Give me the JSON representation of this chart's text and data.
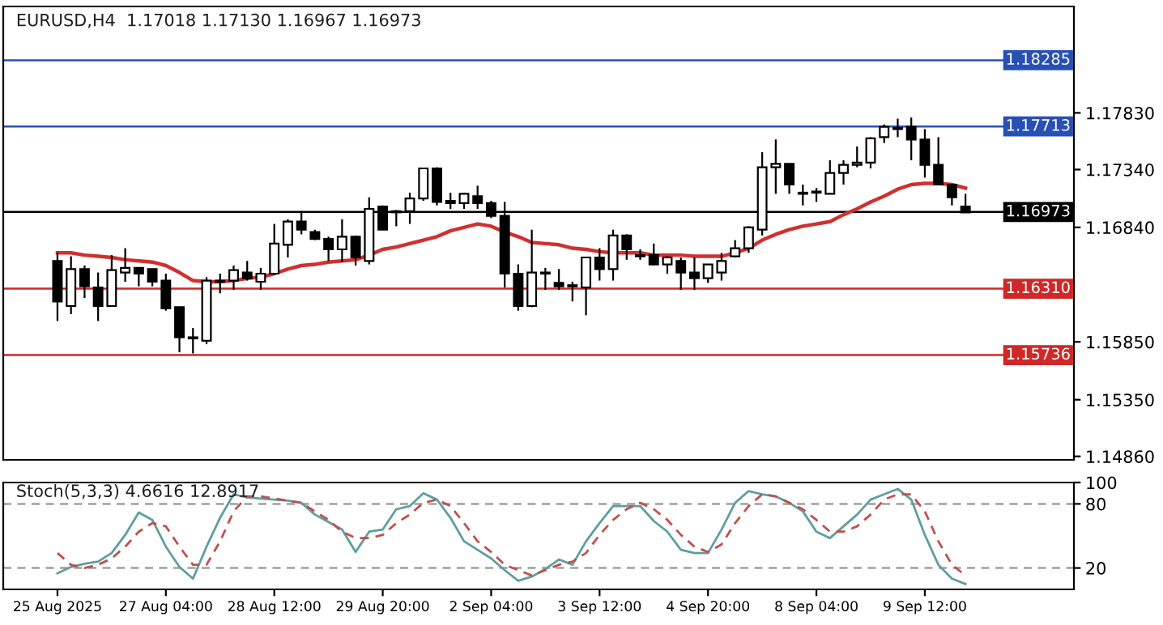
{
  "chart_data": [
    {
      "type": "candlestick",
      "title": "EURUSD,H4  1.17018 1.17130 1.16967 1.16973",
      "categories": [
        null,
        null,
        null,
        null,
        null,
        null,
        null,
        null,
        null,
        null,
        null,
        null,
        null,
        null,
        null,
        null,
        null,
        null,
        null,
        null,
        null,
        null,
        null,
        null,
        null,
        null,
        null,
        null,
        null,
        null,
        null,
        null,
        null,
        null,
        null,
        null,
        null,
        null,
        null,
        null,
        null,
        null,
        null,
        null,
        null,
        null,
        null,
        null,
        null,
        null,
        null,
        null,
        null,
        null,
        null,
        null,
        null,
        null,
        null,
        null,
        null,
        null,
        null,
        null,
        null,
        null,
        null,
        null
      ],
      "series": [
        {
          "type": "candlestick",
          "color": "#000000",
          "ohlc": [
            [
              1.1655,
              1.1662,
              1.1603,
              1.162
            ],
            [
              1.1616,
              1.1659,
              1.1609,
              1.1648
            ],
            [
              1.1648,
              1.1651,
              1.1623,
              1.1633
            ],
            [
              1.1632,
              1.1645,
              1.1603,
              1.1616
            ],
            [
              1.1616,
              1.166,
              1.1616,
              1.1647
            ],
            [
              1.1645,
              1.1666,
              1.1637,
              1.1649
            ],
            [
              1.1649,
              1.1649,
              1.1633,
              1.1644
            ],
            [
              1.1648,
              1.1648,
              1.1633,
              1.1637
            ],
            [
              1.1638,
              1.1644,
              1.1612,
              1.1614
            ],
            [
              1.1615,
              1.1615,
              1.1576,
              1.1589
            ],
            [
              1.1589,
              1.1597,
              1.1575,
              1.1588
            ],
            [
              1.1586,
              1.1641,
              1.1583,
              1.1638
            ],
            [
              1.1637,
              1.1644,
              1.1627,
              1.1638
            ],
            [
              1.1638,
              1.1651,
              1.163,
              1.1647
            ],
            [
              1.1645,
              1.1655,
              1.1638,
              1.164
            ],
            [
              1.1637,
              1.1649,
              1.163,
              1.1644
            ],
            [
              1.1644,
              1.1687,
              1.1643,
              1.167
            ],
            [
              1.1669,
              1.1691,
              1.1658,
              1.1689
            ],
            [
              1.1689,
              1.1698,
              1.1678,
              1.1682
            ],
            [
              1.168,
              1.1682,
              1.1673,
              1.1674
            ],
            [
              1.1674,
              1.1676,
              1.1655,
              1.1665
            ],
            [
              1.1665,
              1.1691,
              1.1654,
              1.1676
            ],
            [
              1.1676,
              1.1677,
              1.1651,
              1.1658
            ],
            [
              1.1655,
              1.171,
              1.1652,
              1.17
            ],
            [
              1.1702,
              1.1703,
              1.1682,
              1.1682
            ],
            [
              1.1698,
              1.1699,
              1.1685,
              1.1697
            ],
            [
              1.1698,
              1.1714,
              1.1687,
              1.1709
            ],
            [
              1.1709,
              1.1735,
              1.1707,
              1.1735
            ],
            [
              1.1735,
              1.1736,
              1.1703,
              1.1706
            ],
            [
              1.1707,
              1.1714,
              1.17,
              1.1705
            ],
            [
              1.1705,
              1.1714,
              1.17,
              1.1713
            ],
            [
              1.1711,
              1.172,
              1.17,
              1.1705
            ],
            [
              1.1705,
              1.1707,
              1.1692,
              1.1694
            ],
            [
              1.1694,
              1.1706,
              1.1632,
              1.1644
            ],
            [
              1.1644,
              1.1652,
              1.1612,
              1.1616
            ],
            [
              1.1616,
              1.1682,
              1.1615,
              1.1645
            ],
            [
              1.1645,
              1.1649,
              1.163,
              1.1644
            ],
            [
              1.1636,
              1.1648,
              1.163,
              1.1633
            ],
            [
              1.1634,
              1.1637,
              1.162,
              1.1633
            ],
            [
              1.1632,
              1.1658,
              1.1608,
              1.1658
            ],
            [
              1.1658,
              1.1666,
              1.1638,
              1.1648
            ],
            [
              1.1648,
              1.1682,
              1.1638,
              1.1677
            ],
            [
              1.1677,
              1.1678,
              1.1656,
              1.1665
            ],
            [
              1.166,
              1.1665,
              1.1656,
              1.1659
            ],
            [
              1.166,
              1.167,
              1.1651,
              1.1652
            ],
            [
              1.1652,
              1.1659,
              1.1644,
              1.1658
            ],
            [
              1.1655,
              1.1658,
              1.163,
              1.1645
            ],
            [
              1.1645,
              1.1658,
              1.163,
              1.164
            ],
            [
              1.164,
              1.1652,
              1.1636,
              1.1652
            ],
            [
              1.1645,
              1.1662,
              1.1638,
              1.1655
            ],
            [
              1.1659,
              1.1673,
              1.1658,
              1.1666
            ],
            [
              1.1666,
              1.1685,
              1.1662,
              1.1684
            ],
            [
              1.1682,
              1.1749,
              1.1677,
              1.1736
            ],
            [
              1.1736,
              1.176,
              1.1713,
              1.1739
            ],
            [
              1.1739,
              1.1739,
              1.1713,
              1.1721
            ],
            [
              1.1714,
              1.1721,
              1.1703,
              1.1713
            ],
            [
              1.1714,
              1.1718,
              1.1706,
              1.1715
            ],
            [
              1.1713,
              1.1742,
              1.1713,
              1.1731
            ],
            [
              1.1731,
              1.1742,
              1.1721,
              1.1738
            ],
            [
              1.1738,
              1.1754,
              1.1736,
              1.174
            ],
            [
              1.174,
              1.1762,
              1.1735,
              1.1761
            ],
            [
              1.1762,
              1.1773,
              1.1757,
              1.1771
            ],
            [
              1.1769,
              1.1778,
              1.1762,
              1.177
            ],
            [
              1.1771,
              1.1779,
              1.1742,
              1.176
            ],
            [
              1.176,
              1.1769,
              1.1727,
              1.1738
            ],
            [
              1.1738,
              1.1762,
              1.1721,
              1.1721
            ],
            [
              1.1721,
              1.1721,
              1.1703,
              1.171
            ],
            [
              1.1702,
              1.1713,
              1.1697,
              1.1697
            ]
          ]
        },
        {
          "type": "line",
          "color": "#d03030",
          "values": [
            1.1662,
            1.1662,
            1.166,
            1.1659,
            1.1658,
            1.1656,
            1.1655,
            1.1654,
            1.1651,
            1.1645,
            1.1638,
            1.1637,
            1.1637,
            1.1638,
            1.164,
            1.1641,
            1.1644,
            1.1648,
            1.1651,
            1.1652,
            1.1654,
            1.1655,
            1.1656,
            1.166,
            1.1665,
            1.1667,
            1.167,
            1.1673,
            1.1676,
            1.1681,
            1.1684,
            1.1687,
            1.1685,
            1.168,
            1.1676,
            1.1671,
            1.167,
            1.1669,
            1.1666,
            1.1665,
            1.1663,
            1.1662,
            1.1662,
            1.1662,
            1.166,
            1.166,
            1.166,
            1.1659,
            1.1659,
            1.1659,
            1.1662,
            1.1666,
            1.1673,
            1.1678,
            1.1682,
            1.1685,
            1.1687,
            1.1689,
            1.1695,
            1.17,
            1.1706,
            1.1711,
            1.1717,
            1.1721,
            1.1722,
            1.1722,
            1.1721,
            1.1718
          ]
        }
      ],
      "ylim": [
        1.1483,
        1.1875
      ],
      "yticks": [
        {
          "value": 1.1486,
          "label": "1.14860"
        },
        {
          "value": 1.1535,
          "label": "1.15350"
        },
        {
          "value": 1.1585,
          "label": "1.15850"
        },
        {
          "value": 1.1684,
          "label": "1.16840"
        },
        {
          "value": 1.1734,
          "label": "1.17340"
        },
        {
          "value": 1.1783,
          "label": "1.17830"
        }
      ],
      "ref_lines": [
        {
          "axis": "y",
          "value": 1.18285,
          "label": "1.18285",
          "color": "#2850b4",
          "line_style": "solid"
        },
        {
          "axis": "y",
          "value": 1.17713,
          "label": "1.17713",
          "color": "#2850b4",
          "line_style": "solid"
        },
        {
          "axis": "y",
          "value": 1.16973,
          "label": "1.16973",
          "color": "#000000",
          "line_style": "solid"
        },
        {
          "axis": "y",
          "value": 1.1631,
          "label": "1.16310",
          "color": "#d02828",
          "line_style": "solid"
        },
        {
          "axis": "y",
          "value": 1.15736,
          "label": "1.15736",
          "color": "#d02828",
          "line_style": "solid"
        }
      ],
      "tick_labels": "y"
    },
    {
      "type": "line",
      "title": "Stoch(5,3,3) 4.6616 12.8917",
      "categories": [
        "25 Aug 2025",
        null,
        null,
        null,
        null,
        null,
        null,
        null,
        "27 Aug 04:00",
        null,
        null,
        null,
        null,
        null,
        null,
        null,
        "28 Aug 12:00",
        null,
        null,
        null,
        null,
        null,
        null,
        null,
        "29 Aug 20:00",
        null,
        null,
        null,
        null,
        null,
        null,
        null,
        "2 Sep 04:00",
        null,
        null,
        null,
        null,
        null,
        null,
        null,
        "3 Sep 12:00",
        null,
        null,
        null,
        null,
        null,
        null,
        null,
        "4 Sep 20:00",
        null,
        null,
        null,
        null,
        null,
        null,
        null,
        "8 Sep 04:00",
        null,
        null,
        null,
        null,
        null,
        null,
        null,
        "9 Sep 12:00",
        null,
        null,
        null
      ],
      "series": [
        {
          "color": "#5f9ea0",
          "line_style": "solid",
          "values": [
            15,
            21,
            24,
            26,
            34,
            51,
            72,
            65,
            40,
            21,
            10,
            40,
            67,
            89,
            86,
            85,
            84,
            83,
            81,
            70,
            63,
            56,
            35,
            54,
            56,
            75,
            78,
            90,
            84,
            67,
            45,
            37,
            29,
            18,
            8,
            12,
            19,
            28,
            23,
            45,
            62,
            78,
            78,
            78,
            64,
            54,
            37,
            34,
            34,
            56,
            81,
            92,
            89,
            87,
            81,
            73,
            54,
            48,
            59,
            70,
            84,
            89,
            94,
            84,
            51,
            23,
            10,
            5
          ]
        },
        {
          "color": "#c0504d",
          "line_style": "dashed",
          "values": [
            34,
            23,
            20,
            23,
            29,
            40,
            54,
            62,
            59,
            40,
            23,
            23,
            45,
            73,
            87,
            87,
            85,
            83,
            81,
            73,
            65,
            54,
            48,
            48,
            51,
            62,
            70,
            81,
            84,
            78,
            62,
            45,
            35,
            23,
            18,
            13,
            18,
            23,
            26,
            34,
            51,
            65,
            75,
            81,
            75,
            65,
            51,
            40,
            35,
            42,
            62,
            78,
            89,
            87,
            81,
            75,
            65,
            54,
            54,
            59,
            70,
            84,
            89,
            89,
            73,
            45,
            23,
            13
          ]
        }
      ],
      "ylim": [
        0,
        100
      ],
      "yticks": [
        20,
        80,
        100
      ],
      "ref_lines": [
        {
          "axis": "y",
          "value": 80,
          "color": "#a0a0a0",
          "line_style": "dashed"
        },
        {
          "axis": "y",
          "value": 20,
          "color": "#a0a0a0",
          "line_style": "dashed"
        }
      ]
    }
  ]
}
